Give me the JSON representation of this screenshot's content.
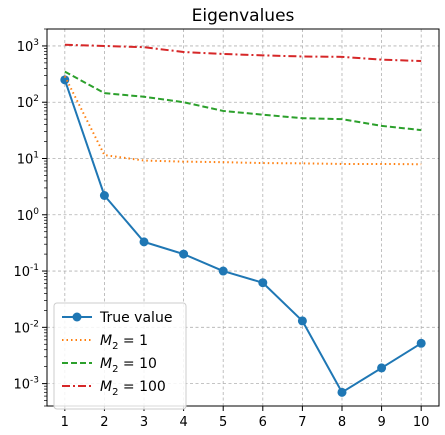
{
  "chart_data": {
    "type": "line",
    "title": "Eigenvalues",
    "xlabel": "",
    "ylabel": "",
    "yscale": "log",
    "x": [
      1,
      2,
      3,
      4,
      5,
      6,
      7,
      8,
      9,
      10
    ],
    "xlim": [
      0.55,
      10.45
    ],
    "ylim": [
      0.0004,
      2000
    ],
    "xticks": [
      1,
      2,
      3,
      4,
      5,
      6,
      7,
      8,
      9,
      10
    ],
    "yticks": [
      0.001,
      0.01,
      0.1,
      1,
      10,
      100,
      1000
    ],
    "ytick_exponents": [
      "-3",
      "-2",
      "-1",
      "0",
      "1",
      "2",
      "3"
    ],
    "ytick_base": "10",
    "grid": true,
    "legend_position": "bottom-left",
    "series": [
      {
        "name": "True value",
        "legend_label": {
          "text": "True value"
        },
        "color": "#1f77b4",
        "style": "solid",
        "marker": "circle",
        "values": [
          250,
          2.2,
          0.33,
          0.2,
          0.1,
          0.062,
          0.013,
          0.0007,
          0.0019,
          0.0052
        ]
      },
      {
        "name": "M_2 = 1",
        "legend_label": {
          "var": "M",
          "sub": "2",
          "rest": " = 1"
        },
        "color": "#ff7f0e",
        "style": "dotted",
        "marker": "none",
        "values": [
          290,
          11.5,
          9.2,
          8.8,
          8.6,
          8.3,
          8.2,
          8.0,
          8.0,
          7.9
        ]
      },
      {
        "name": "M_2 = 10",
        "legend_label": {
          "var": "M",
          "sub": "2",
          "rest": " = 10"
        },
        "color": "#2ca02c",
        "style": "dashed",
        "marker": "none",
        "values": [
          350,
          145,
          125,
          100,
          70,
          60,
          52,
          50,
          38,
          32
        ]
      },
      {
        "name": "M_2 = 100",
        "legend_label": {
          "var": "M",
          "sub": "2",
          "rest": " = 100"
        },
        "color": "#d62728",
        "style": "dashdot",
        "marker": "none",
        "values": [
          1050,
          1000,
          950,
          780,
          720,
          680,
          650,
          640,
          570,
          540
        ]
      }
    ]
  }
}
